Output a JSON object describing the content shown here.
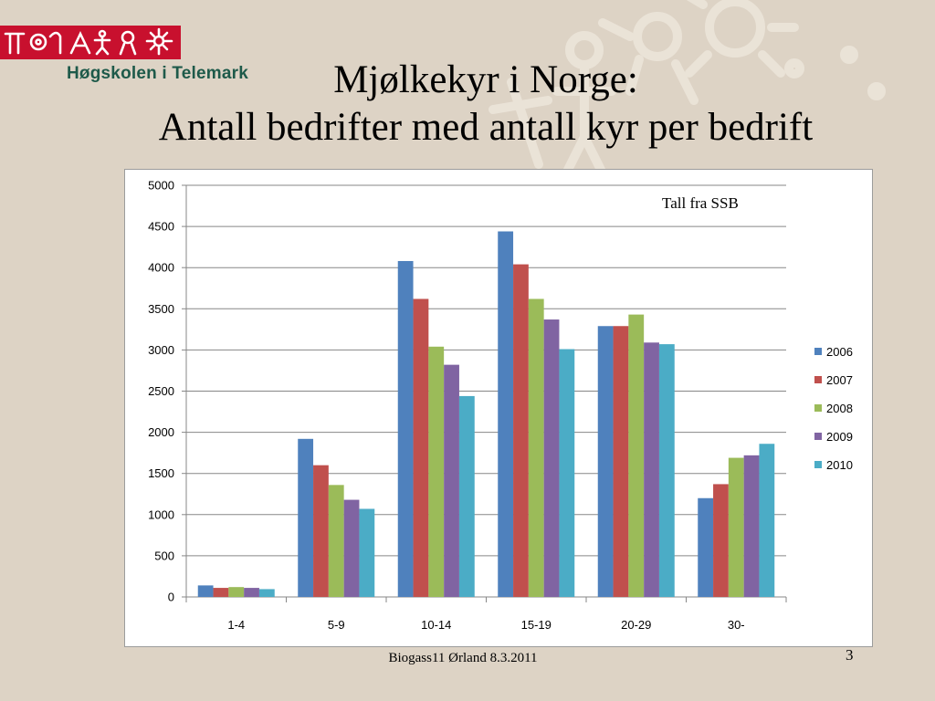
{
  "header": {
    "school_name": "Høgskolen i Telemark",
    "title_line1": "Mjølkekyr i Norge:",
    "title_line2": "Antall bedrifter med antall kyr per bedrift"
  },
  "footer": {
    "event": "Biogass11 Ørland 8.3.2011",
    "page_number": "3"
  },
  "colors": {
    "background": "#ddd3c5",
    "logo_red": "#c8102e",
    "school_green": "#1e5a4a"
  },
  "chart_data": {
    "type": "bar",
    "title": "",
    "note": "Tall fra SSB",
    "xlabel": "",
    "ylabel": "",
    "categories": [
      "1-4",
      "5-9",
      "10-14",
      "15-19",
      "20-29",
      "30-"
    ],
    "yticks": [
      0,
      500,
      1000,
      1500,
      2000,
      2500,
      3000,
      3500,
      4000,
      4500,
      5000
    ],
    "ylim": [
      0,
      5000
    ],
    "grid": true,
    "legend_position": "right",
    "series": [
      {
        "name": "2006",
        "color": "#4f81bd",
        "values": [
          140,
          1920,
          4080,
          4440,
          3290,
          1200
        ]
      },
      {
        "name": "2007",
        "color": "#c0504d",
        "values": [
          110,
          1600,
          3620,
          4040,
          3290,
          1370
        ]
      },
      {
        "name": "2008",
        "color": "#9bbb59",
        "values": [
          120,
          1360,
          3040,
          3620,
          3430,
          1690
        ]
      },
      {
        "name": "2009",
        "color": "#8064a2",
        "values": [
          110,
          1180,
          2820,
          3370,
          3090,
          1720
        ]
      },
      {
        "name": "2010",
        "color": "#4bacc6",
        "values": [
          95,
          1070,
          2440,
          3010,
          3070,
          1860
        ]
      }
    ]
  }
}
